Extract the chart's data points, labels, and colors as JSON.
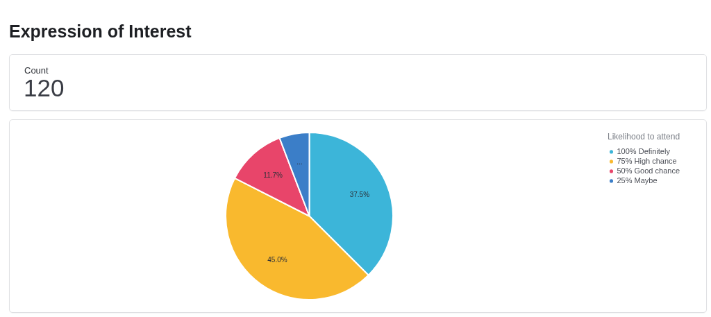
{
  "chart_data": [
    {
      "type": "other",
      "title": "Expression of Interest",
      "subtitle": "Count",
      "annotations": [
        "120"
      ]
    },
    {
      "type": "pie",
      "categories": [
        "100% Definitely",
        "75% High chance",
        "50% Good chance",
        "25% Maybe"
      ],
      "values": [
        37.5,
        45.0,
        11.7,
        5.8
      ],
      "colors": [
        "#3cb5d9",
        "#f9b92e",
        "#e8456a",
        "#3b7ec8"
      ],
      "legend": "top right",
      "legend_title": "Likelihood to attend",
      "value_labels": [
        "37.5%",
        "45.0%",
        "11.7%",
        "..."
      ]
    }
  ]
}
